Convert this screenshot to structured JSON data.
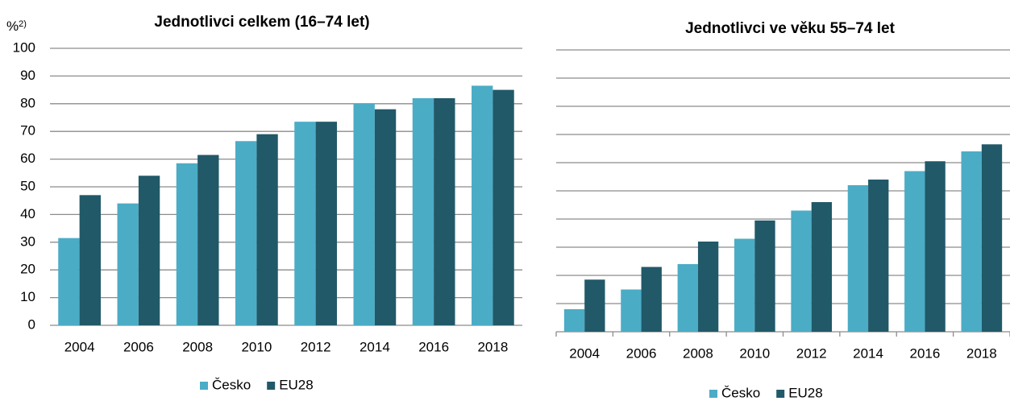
{
  "chart_data": [
    {
      "type": "bar",
      "title": "Jednotlivci celkem (16–74 let)",
      "y_label": "%",
      "y_label_note": "2)",
      "categories": [
        "2004",
        "2006",
        "2008",
        "2010",
        "2012",
        "2014",
        "2016",
        "2018"
      ],
      "series": [
        {
          "name": "Česko",
          "color": "#4bacc6",
          "values": [
            31.5,
            44,
            58.5,
            66.5,
            73.5,
            80,
            82,
            86.5
          ]
        },
        {
          "name": "EU28",
          "color": "#215968",
          "values": [
            47,
            54,
            61.5,
            69,
            73.5,
            78,
            82,
            85
          ]
        }
      ],
      "ylim": [
        0,
        100
      ],
      "yticks": [
        0,
        10,
        20,
        30,
        40,
        50,
        60,
        70,
        80,
        90,
        100
      ],
      "grid": true,
      "show_ytick_labels": true,
      "legend": "bottom"
    },
    {
      "type": "bar",
      "title": "Jednotlivci ve věku 55–74 let",
      "categories": [
        "2004",
        "2006",
        "2008",
        "2010",
        "2012",
        "2014",
        "2016",
        "2018"
      ],
      "series": [
        {
          "name": "Česko",
          "color": "#4bacc6",
          "values": [
            8,
            15,
            24,
            33,
            43,
            52,
            57,
            64
          ]
        },
        {
          "name": "EU28",
          "color": "#215968",
          "values": [
            18.5,
            23,
            32,
            39.5,
            46,
            54,
            60.5,
            66.5
          ]
        }
      ],
      "ylim": [
        0,
        100
      ],
      "yticks": [
        0,
        10,
        20,
        30,
        40,
        50,
        60,
        70,
        80,
        90,
        100
      ],
      "grid": true,
      "show_ytick_labels": false,
      "legend": "bottom"
    }
  ]
}
